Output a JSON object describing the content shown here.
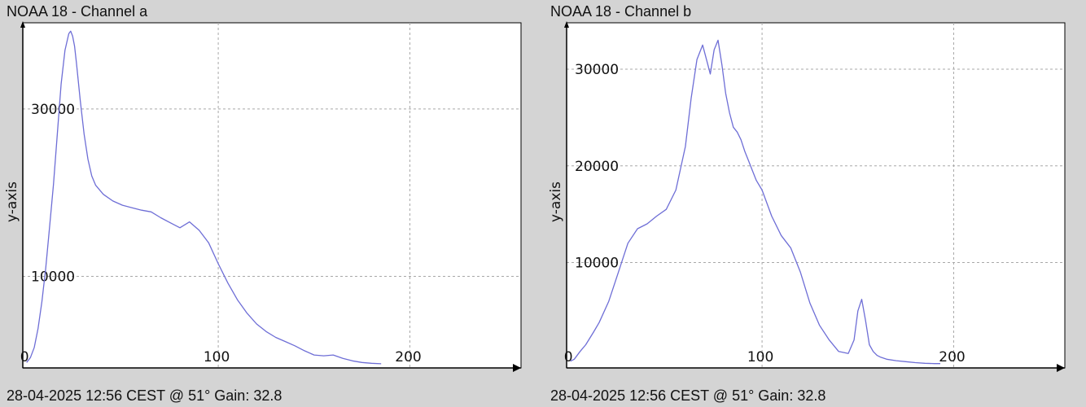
{
  "charts": [
    {
      "title": "NOAA 18 - Channel a",
      "footer": "28-04-2025 12:56 CEST @ 51° Gain: 32.8"
    },
    {
      "title": "NOAA 18 - Channel b",
      "footer": "28-04-2025 12:56 CEST @ 51° Gain: 32.8"
    }
  ],
  "colors": {
    "background": "#d4d4d4",
    "plot_area": "#ffffff",
    "line": "#6e6ed6",
    "grid": "#a8a8a8",
    "axis": "#000000"
  },
  "chart_data": [
    {
      "type": "line",
      "title": "NOAA 18 - Channel a",
      "xlabel": "",
      "ylabel": "y-axis",
      "xlim": [
        -2,
        258
      ],
      "ylim": [
        -950,
        40300
      ],
      "xticks": [
        0,
        100,
        200
      ],
      "yticks": [
        0,
        10000,
        30000
      ],
      "grid": true,
      "series": [
        {
          "x": [
            0,
            2,
            4,
            6,
            8,
            10,
            12,
            14,
            16,
            18,
            20,
            22,
            23,
            24,
            25,
            26,
            28,
            30,
            32,
            34,
            36,
            40,
            45,
            50,
            55,
            60,
            65,
            70,
            75,
            80,
            85,
            90,
            95,
            100,
            105,
            110,
            115,
            120,
            125,
            130,
            135,
            140,
            145,
            150,
            155,
            160,
            165,
            170,
            175,
            180,
            185
          ],
          "y": [
            -300,
            300,
            1500,
            3800,
            7000,
            11000,
            16000,
            21000,
            27000,
            33000,
            37000,
            39000,
            39300,
            38700,
            37500,
            35500,
            31000,
            27000,
            24000,
            22000,
            20900,
            19800,
            19000,
            18500,
            18200,
            17900,
            17700,
            17000,
            16400,
            15800,
            16500,
            15500,
            14000,
            11500,
            9200,
            7200,
            5600,
            4300,
            3400,
            2700,
            2200,
            1700,
            1100,
            600,
            500,
            600,
            200,
            -100,
            -300,
            -400,
            -450
          ]
        }
      ]
    },
    {
      "type": "line",
      "title": "NOAA 18 - Channel b",
      "xlabel": "",
      "ylabel": "y-axis",
      "xlim": [
        -2,
        258
      ],
      "ylim": [
        -900,
        34800
      ],
      "xticks": [
        0,
        100,
        200
      ],
      "yticks": [
        0,
        10000,
        20000,
        30000
      ],
      "grid": true,
      "series": [
        {
          "x": [
            0,
            2,
            5,
            8,
            12,
            15,
            20,
            25,
            30,
            35,
            40,
            45,
            50,
            55,
            60,
            63,
            66,
            69,
            71,
            73,
            75,
            77,
            79,
            81,
            83,
            85,
            87,
            89,
            91,
            93,
            95,
            97,
            100,
            105,
            110,
            115,
            120,
            125,
            130,
            135,
            140,
            145,
            148,
            150,
            152,
            154,
            156,
            158,
            160,
            162,
            165,
            170,
            175,
            180,
            185,
            190,
            193
          ],
          "y": [
            -200,
            0,
            800,
            1500,
            2800,
            3800,
            6000,
            9000,
            12000,
            13500,
            14000,
            14800,
            15500,
            17500,
            22000,
            27000,
            31000,
            32500,
            31000,
            29500,
            32000,
            33000,
            30500,
            27500,
            25500,
            24000,
            23500,
            22700,
            21500,
            20500,
            19500,
            18500,
            17500,
            14800,
            12800,
            11500,
            9000,
            5800,
            3500,
            2000,
            800,
            600,
            2000,
            5000,
            6200,
            4000,
            1500,
            800,
            400,
            200,
            0,
            -150,
            -250,
            -350,
            -420,
            -450,
            -450
          ]
        }
      ]
    }
  ]
}
